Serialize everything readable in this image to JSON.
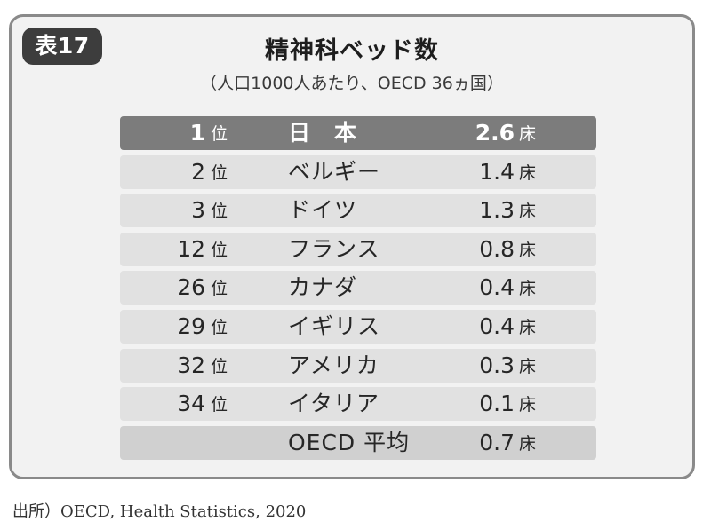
{
  "badge": "表17",
  "title": "精神科ベッド数",
  "subtitle": "（人口1000人あたり、OECD 36ヵ国）",
  "rows": [
    {
      "rank": "1",
      "rank_unit": "位",
      "country": "日　本",
      "value": "2.6",
      "value_unit": "床"
    },
    {
      "rank": "2",
      "rank_unit": "位",
      "country": "ベルギー",
      "value": "1.4",
      "value_unit": "床"
    },
    {
      "rank": "3",
      "rank_unit": "位",
      "country": "ドイツ",
      "value": "1.3",
      "value_unit": "床"
    },
    {
      "rank": "12",
      "rank_unit": "位",
      "country": "フランス",
      "value": "0.8",
      "value_unit": "床"
    },
    {
      "rank": "26",
      "rank_unit": "位",
      "country": "カナダ",
      "value": "0.4",
      "value_unit": "床"
    },
    {
      "rank": "29",
      "rank_unit": "位",
      "country": "イギリス",
      "value": "0.4",
      "value_unit": "床"
    },
    {
      "rank": "32",
      "rank_unit": "位",
      "country": "アメリカ",
      "value": "0.3",
      "value_unit": "床"
    },
    {
      "rank": "34",
      "rank_unit": "位",
      "country": "イタリア",
      "value": "0.1",
      "value_unit": "床"
    }
  ],
  "average": {
    "label": "OECD 平均",
    "value": "0.7",
    "value_unit": "床"
  },
  "source": "出所）OECD, Health Statistics, 2020"
}
